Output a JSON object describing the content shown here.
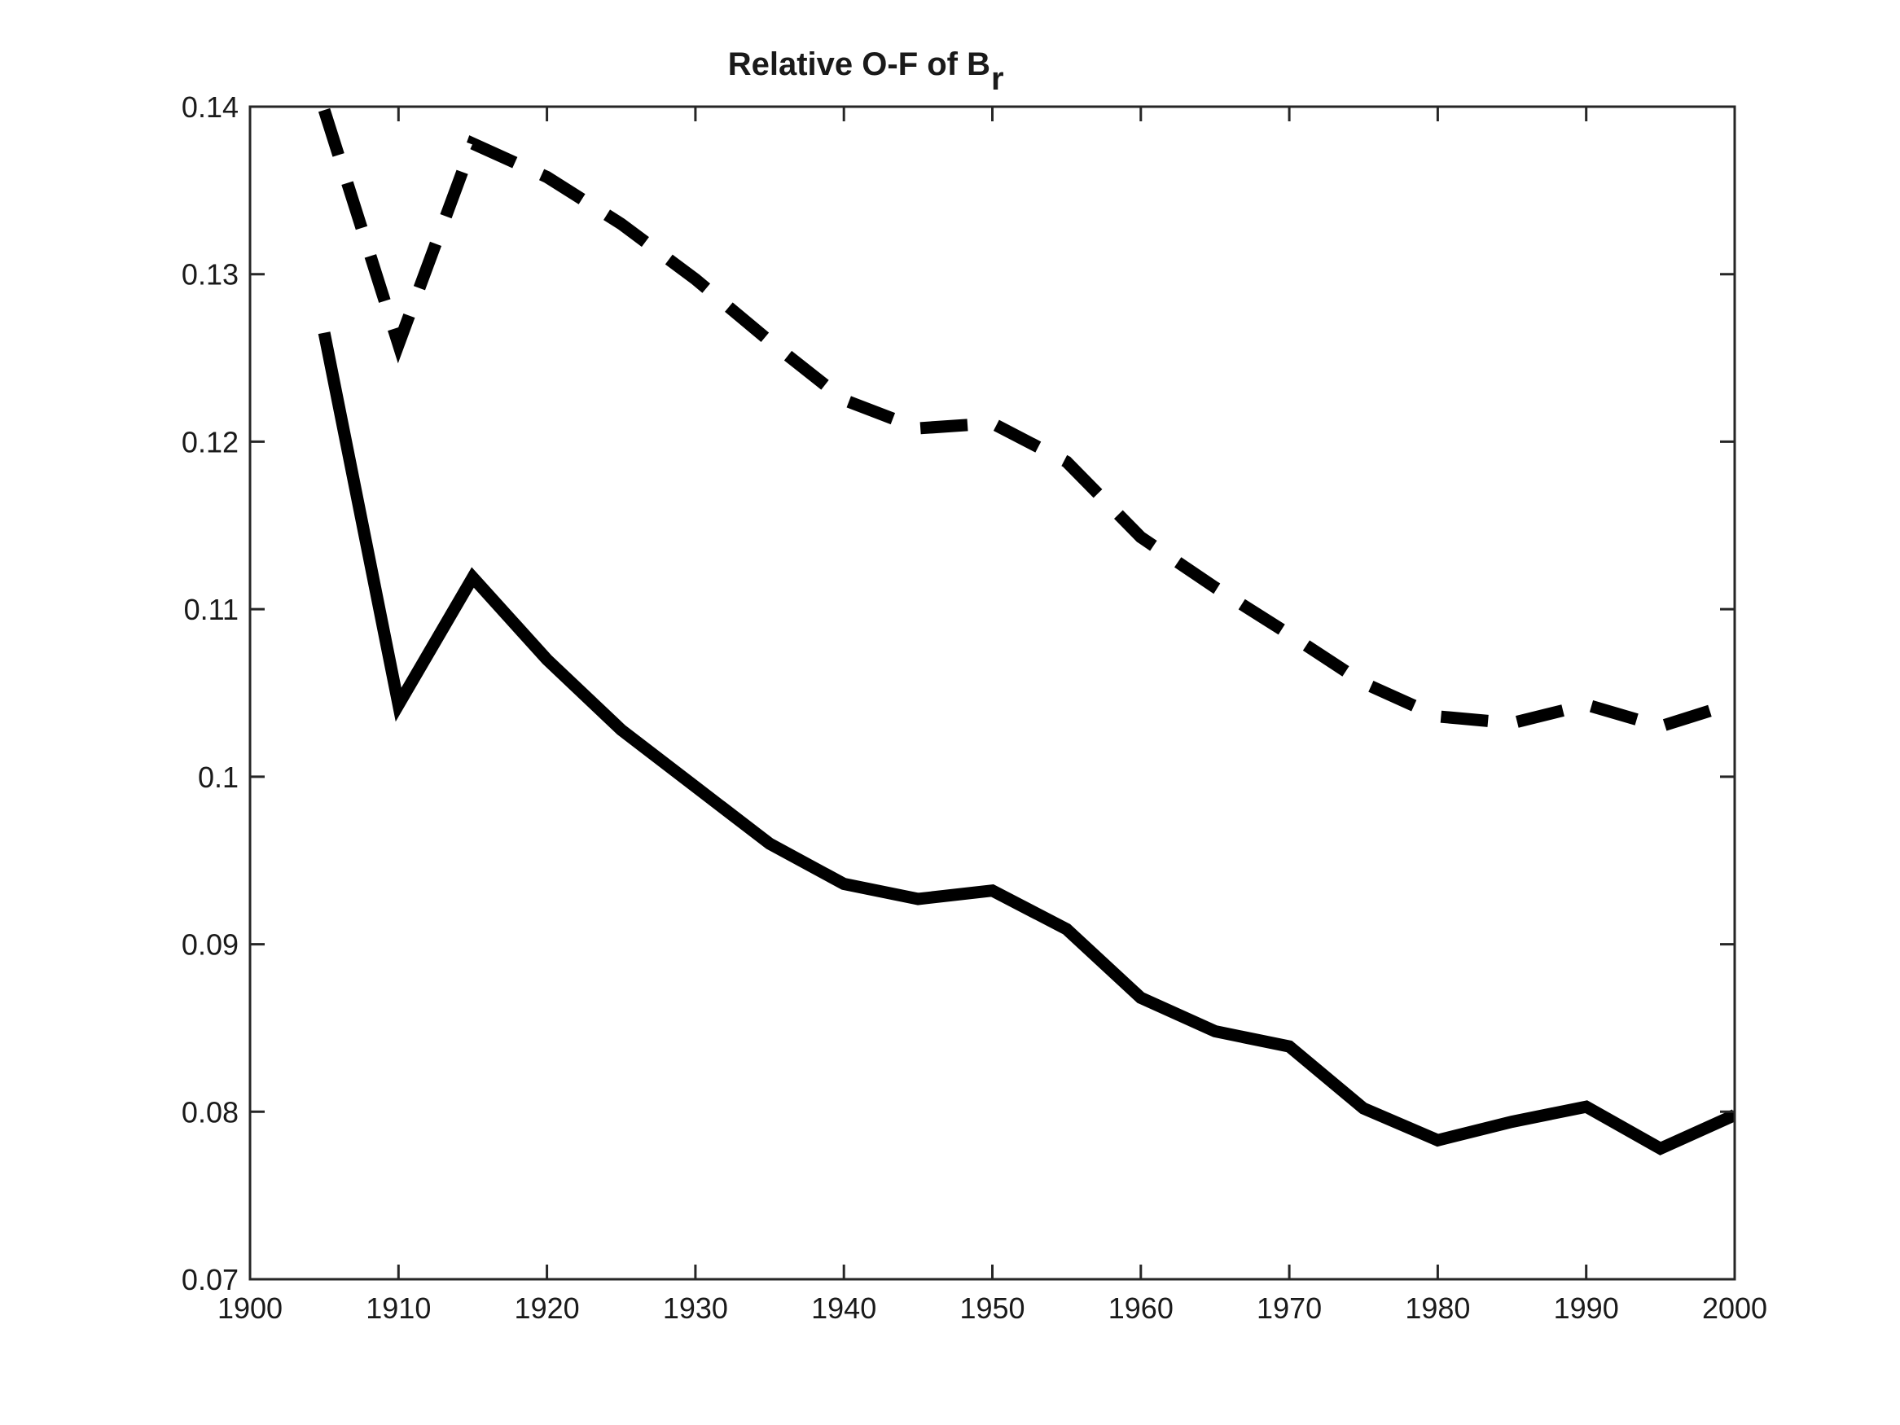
{
  "chart_data": {
    "type": "line",
    "title": "Relative O-F of B",
    "title_subscript": "r",
    "xlabel": "",
    "ylabel": "",
    "xlim": [
      1900,
      2000
    ],
    "ylim": [
      0.07,
      0.14
    ],
    "xticks": [
      "1900",
      "1910",
      "1920",
      "1930",
      "1940",
      "1950",
      "1960",
      "1970",
      "1980",
      "1990",
      "2000"
    ],
    "yticks": [
      "0.07",
      "0.08",
      "0.09",
      "0.1",
      "0.11",
      "0.12",
      "0.13",
      "0.14"
    ],
    "grid": false,
    "x": [
      1905,
      1910,
      1915,
      1920,
      1925,
      1930,
      1935,
      1940,
      1945,
      1950,
      1955,
      1960,
      1965,
      1970,
      1975,
      1980,
      1985,
      1990,
      1995,
      2000
    ],
    "series": [
      {
        "name": "dashed",
        "style": "dashed",
        "color": "#000000",
        "values": [
          0.1398,
          0.1258,
          0.1378,
          0.1358,
          0.133,
          0.1297,
          0.126,
          0.1225,
          0.1208,
          0.1211,
          0.1188,
          0.1143,
          0.1113,
          0.1085,
          0.1056,
          0.1036,
          0.1032,
          0.1043,
          0.103,
          0.1044
        ]
      },
      {
        "name": "solid",
        "style": "solid",
        "color": "#000000",
        "values": [
          0.1265,
          0.1043,
          0.1119,
          0.107,
          0.1028,
          0.0994,
          0.096,
          0.0936,
          0.0927,
          0.0932,
          0.0909,
          0.0868,
          0.0848,
          0.0839,
          0.0802,
          0.0783,
          0.0794,
          0.0803,
          0.0778,
          0.0798
        ]
      }
    ]
  }
}
